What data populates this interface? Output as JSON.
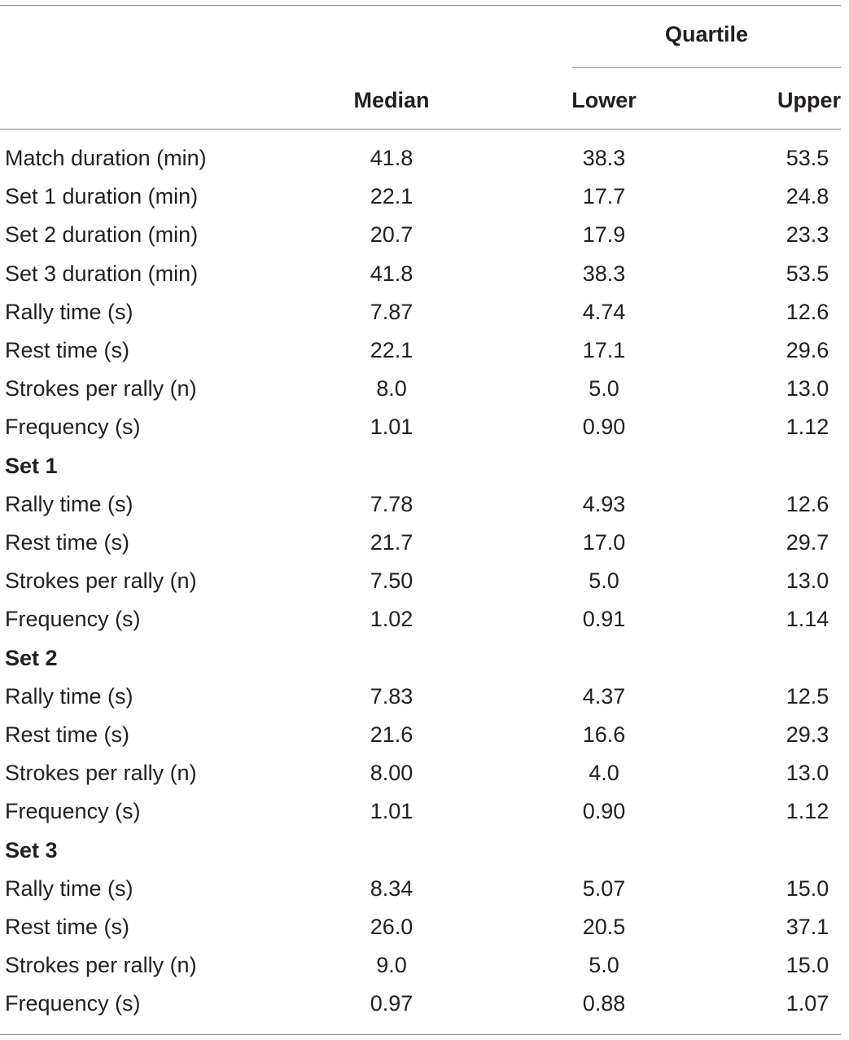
{
  "table": {
    "header": {
      "group_label": "Quartile",
      "median": "Median",
      "lower": "Lower",
      "upper": "Upper"
    },
    "rows": [
      {
        "label": "Match duration (min)",
        "median": "41.8",
        "lower": "38.3",
        "upper": "53.5"
      },
      {
        "label": "Set 1 duration (min)",
        "median": "22.1",
        "lower": "17.7",
        "upper": "24.8"
      },
      {
        "label": "Set 2 duration (min)",
        "median": "20.7",
        "lower": "17.9",
        "upper": "23.3"
      },
      {
        "label": "Set 3 duration (min)",
        "median": "41.8",
        "lower": "38.3",
        "upper": "53.5"
      },
      {
        "label": "Rally time (s)",
        "median": "7.87",
        "lower": "4.74",
        "upper": "12.6"
      },
      {
        "label": "Rest time (s)",
        "median": "22.1",
        "lower": "17.1",
        "upper": "29.6"
      },
      {
        "label": "Strokes per rally (n)",
        "median": "8.0",
        "lower": "5.0",
        "upper": "13.0"
      },
      {
        "label": "Frequency (s)",
        "median": "1.01",
        "lower": "0.90",
        "upper": "1.12"
      },
      {
        "label": "Set 1",
        "section": true
      },
      {
        "label": "Rally time (s)",
        "median": "7.78",
        "lower": "4.93",
        "upper": "12.6"
      },
      {
        "label": "Rest time (s)",
        "median": "21.7",
        "lower": "17.0",
        "upper": "29.7"
      },
      {
        "label": "Strokes per rally (n)",
        "median": "7.50",
        "lower": "5.0",
        "upper": "13.0"
      },
      {
        "label": "Frequency (s)",
        "median": "1.02",
        "lower": "0.91",
        "upper": "1.14"
      },
      {
        "label": "Set 2",
        "section": true
      },
      {
        "label": "Rally time (s)",
        "median": "7.83",
        "lower": "4.37",
        "upper": "12.5"
      },
      {
        "label": "Rest time (s)",
        "median": "21.6",
        "lower": "16.6",
        "upper": "29.3"
      },
      {
        "label": "Strokes per rally (n)",
        "median": "8.00",
        "lower": "4.0",
        "upper": "13.0"
      },
      {
        "label": "Frequency (s)",
        "median": "1.01",
        "lower": "0.90",
        "upper": "1.12"
      },
      {
        "label": "Set 3",
        "section": true
      },
      {
        "label": "Rally time (s)",
        "median": "8.34",
        "lower": "5.07",
        "upper": "15.0"
      },
      {
        "label": "Rest time (s)",
        "median": "26.0",
        "lower": "20.5",
        "upper": "37.1"
      },
      {
        "label": "Strokes per rally (n)",
        "median": "9.0",
        "lower": "5.0",
        "upper": "15.0"
      },
      {
        "label": "Frequency (s)",
        "median": "0.97",
        "lower": "0.88",
        "upper": "1.07"
      }
    ]
  }
}
